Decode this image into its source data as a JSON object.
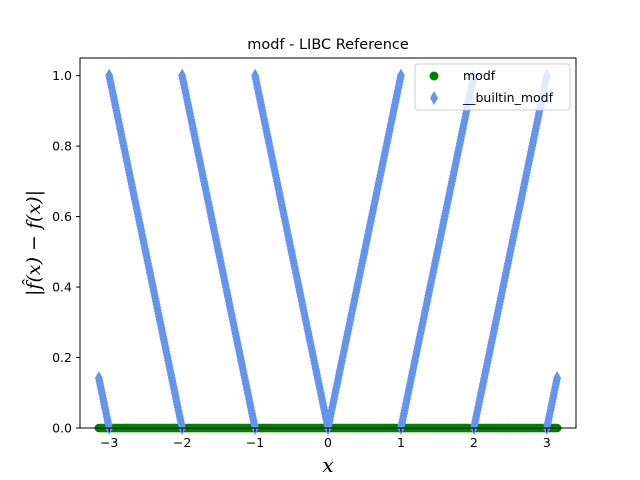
{
  "chart_data": {
    "type": "scatter",
    "title": "modf - LIBC Reference",
    "xlabel": "x",
    "ylabel": "|f̂(x) − f(x)|",
    "xlim": [
      -3.4,
      3.4
    ],
    "ylim": [
      0,
      1.05
    ],
    "xticks": [
      -3,
      -2,
      -1,
      0,
      1,
      2,
      3
    ],
    "xtick_labels": [
      "−3",
      "−2",
      "−1",
      "0",
      "1",
      "2",
      "3"
    ],
    "yticks": [
      0.0,
      0.2,
      0.4,
      0.6,
      0.8,
      1.0
    ],
    "ytick_labels": [
      "0.0",
      "0.2",
      "0.4",
      "0.6",
      "0.8",
      "1.0"
    ],
    "grid": false,
    "legend_position": "top-right",
    "series": [
      {
        "name": "modf",
        "marker": "circle",
        "color": "#008000",
        "x_range": [
          -3.14159,
          3.14159
        ],
        "description_y": 0.0,
        "x": [
          -3.1416,
          -2.5,
          -2.0,
          -1.5,
          -1.0,
          -0.5,
          0.0,
          0.5,
          1.0,
          1.5,
          2.0,
          2.5,
          3.1416
        ],
        "y": [
          0,
          0,
          0,
          0,
          0,
          0,
          0,
          0,
          0,
          0,
          0,
          0,
          0
        ]
      },
      {
        "name": "__builtin_modf",
        "marker": "diamond",
        "color": "#6495ED",
        "x_range": [
          -3.14159,
          3.14159
        ],
        "x": [
          -3.1416,
          -3.0001,
          -3.0,
          -2.5,
          -2.0001,
          -2.0,
          -1.5,
          -1.0001,
          -1.0,
          -0.5,
          0.0,
          0.5,
          0.9999,
          1.0,
          1.5,
          1.9999,
          2.0,
          2.5,
          2.9999,
          3.0,
          3.1416
        ],
        "y": [
          0.1416,
          0.0,
          1.0,
          0.5,
          0.0,
          1.0,
          0.5,
          0.0,
          1.0,
          0.5,
          0.0,
          0.5,
          1.0,
          0.0,
          0.5,
          1.0,
          0.0,
          0.5,
          1.0,
          0.0,
          0.1416
        ]
      }
    ]
  }
}
